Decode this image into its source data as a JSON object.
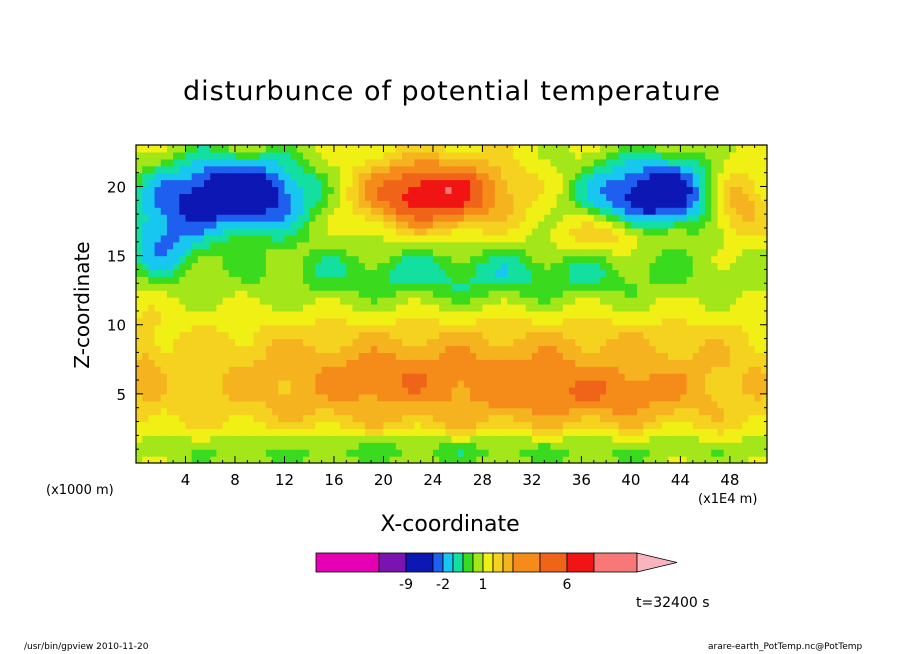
{
  "chart_data": {
    "type": "heatmap",
    "title": "disturbunce of potential temperature",
    "xlabel": "X-coordinate",
    "ylabel": "Z-coordinate",
    "x_unit_label": "(x1000 m)",
    "x_scale_label": "(x1E4 m)",
    "time_label": "t=32400 s",
    "xlim": [
      0,
      51
    ],
    "ylim": [
      0,
      23
    ],
    "x_ticks": [
      "4",
      "8",
      "12",
      "16",
      "20",
      "24",
      "28",
      "32",
      "36",
      "40",
      "44",
      "48"
    ],
    "y_ticks": [
      "5",
      "10",
      "15",
      "20"
    ],
    "colorbar": {
      "colors": [
        "#e600b4",
        "#7a14b0",
        "#0d17b4",
        "#1f5ff0",
        "#17c7f0",
        "#13e0a0",
        "#3adb1f",
        "#a3e61a",
        "#f0f014",
        "#f5d21f",
        "#f5b41f",
        "#f58c1a",
        "#f0641a",
        "#f01414",
        "#f87878",
        "#fab4be"
      ],
      "labels": [
        "-9",
        "-2",
        "1",
        "6"
      ]
    }
  },
  "footer": {
    "left": "/usr/bin/gpview   2010-11-20",
    "right": "arare-earth_PotTemp.nc@PotTemp"
  }
}
